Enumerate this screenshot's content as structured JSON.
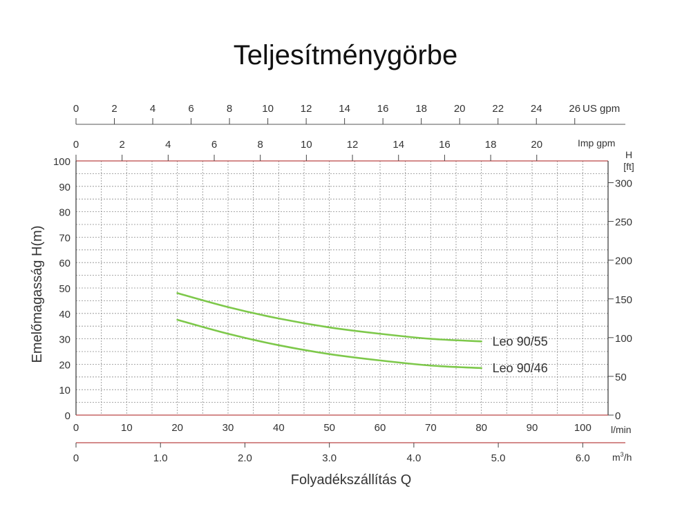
{
  "chart_data": {
    "type": "line",
    "title": "Teljesítménygörbe",
    "xlabel": "Folyadékszállítás Q",
    "ylabel": "Emelőmagasság H(m)",
    "x_unit": "l/min",
    "xlim": [
      0,
      105
    ],
    "ylim": [
      0,
      100
    ],
    "x_ticks": [
      0,
      10,
      20,
      30,
      40,
      50,
      60,
      70,
      80,
      90,
      100
    ],
    "y_ticks": [
      0,
      10,
      20,
      30,
      40,
      50,
      60,
      70,
      80,
      90,
      100
    ],
    "grid": true,
    "series": [
      {
        "name": "Leo 90/55",
        "color": "#7dc84a",
        "x": [
          20,
          30,
          40,
          50,
          60,
          70,
          80
        ],
        "y": [
          48,
          42.5,
          38,
          34.5,
          32,
          30,
          29
        ]
      },
      {
        "name": "Leo 90/46",
        "color": "#7dc84a",
        "x": [
          20,
          30,
          40,
          50,
          60,
          70,
          80
        ],
        "y": [
          37.5,
          32,
          27.5,
          24,
          21.5,
          19.5,
          18.5
        ]
      }
    ],
    "secondary_axes": {
      "us_gpm": {
        "label": "US gpm",
        "ticks": [
          "0",
          "2",
          "4",
          "6",
          "8",
          "10",
          "12",
          "14",
          "16",
          "18",
          "20",
          "22",
          "24",
          "26"
        ]
      },
      "imp_gpm": {
        "label": "Imp gpm",
        "ticks": [
          "0",
          "2",
          "4",
          "6",
          "8",
          "10",
          "12",
          "14",
          "16",
          "18",
          "20"
        ]
      },
      "m3h": {
        "label_base": "m",
        "label_sup": "3",
        "label_tail": "/h",
        "ticks": [
          "0",
          "1.0",
          "2.0",
          "3.0",
          "4.0",
          "5.0",
          "6.0"
        ]
      },
      "ft": {
        "label_top": "H",
        "label_unit": "[ft]",
        "ticks": [
          "0",
          "50",
          "100",
          "150",
          "200",
          "250",
          "300"
        ]
      }
    }
  }
}
